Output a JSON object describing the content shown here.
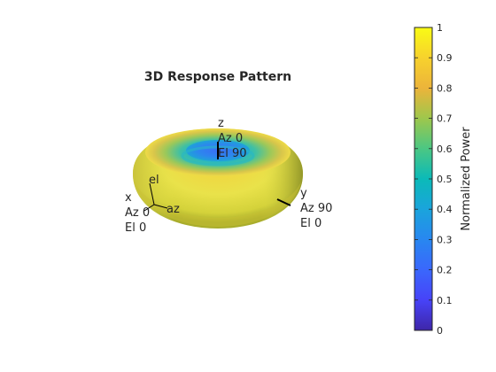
{
  "chart_data": {
    "type": "surface-3d",
    "title": "3D Response Pattern",
    "pattern": "torus",
    "axes_labels": {
      "z": {
        "name": "z",
        "az": "Az 0",
        "el": "El 90"
      },
      "x": {
        "name": "x",
        "az": "Az 0",
        "el": "El 0"
      },
      "y": {
        "name": "y",
        "az": "Az 90",
        "el": "El 0"
      },
      "local": {
        "el": "el",
        "az": "az"
      }
    },
    "colorbar": {
      "label": "Normalized Power",
      "min": 0,
      "max": 1,
      "ticks": [
        "0",
        "0.1",
        "0.2",
        "0.3",
        "0.4",
        "0.5",
        "0.6",
        "0.7",
        "0.8",
        "0.9",
        "1"
      ],
      "colormap": "parula"
    }
  }
}
